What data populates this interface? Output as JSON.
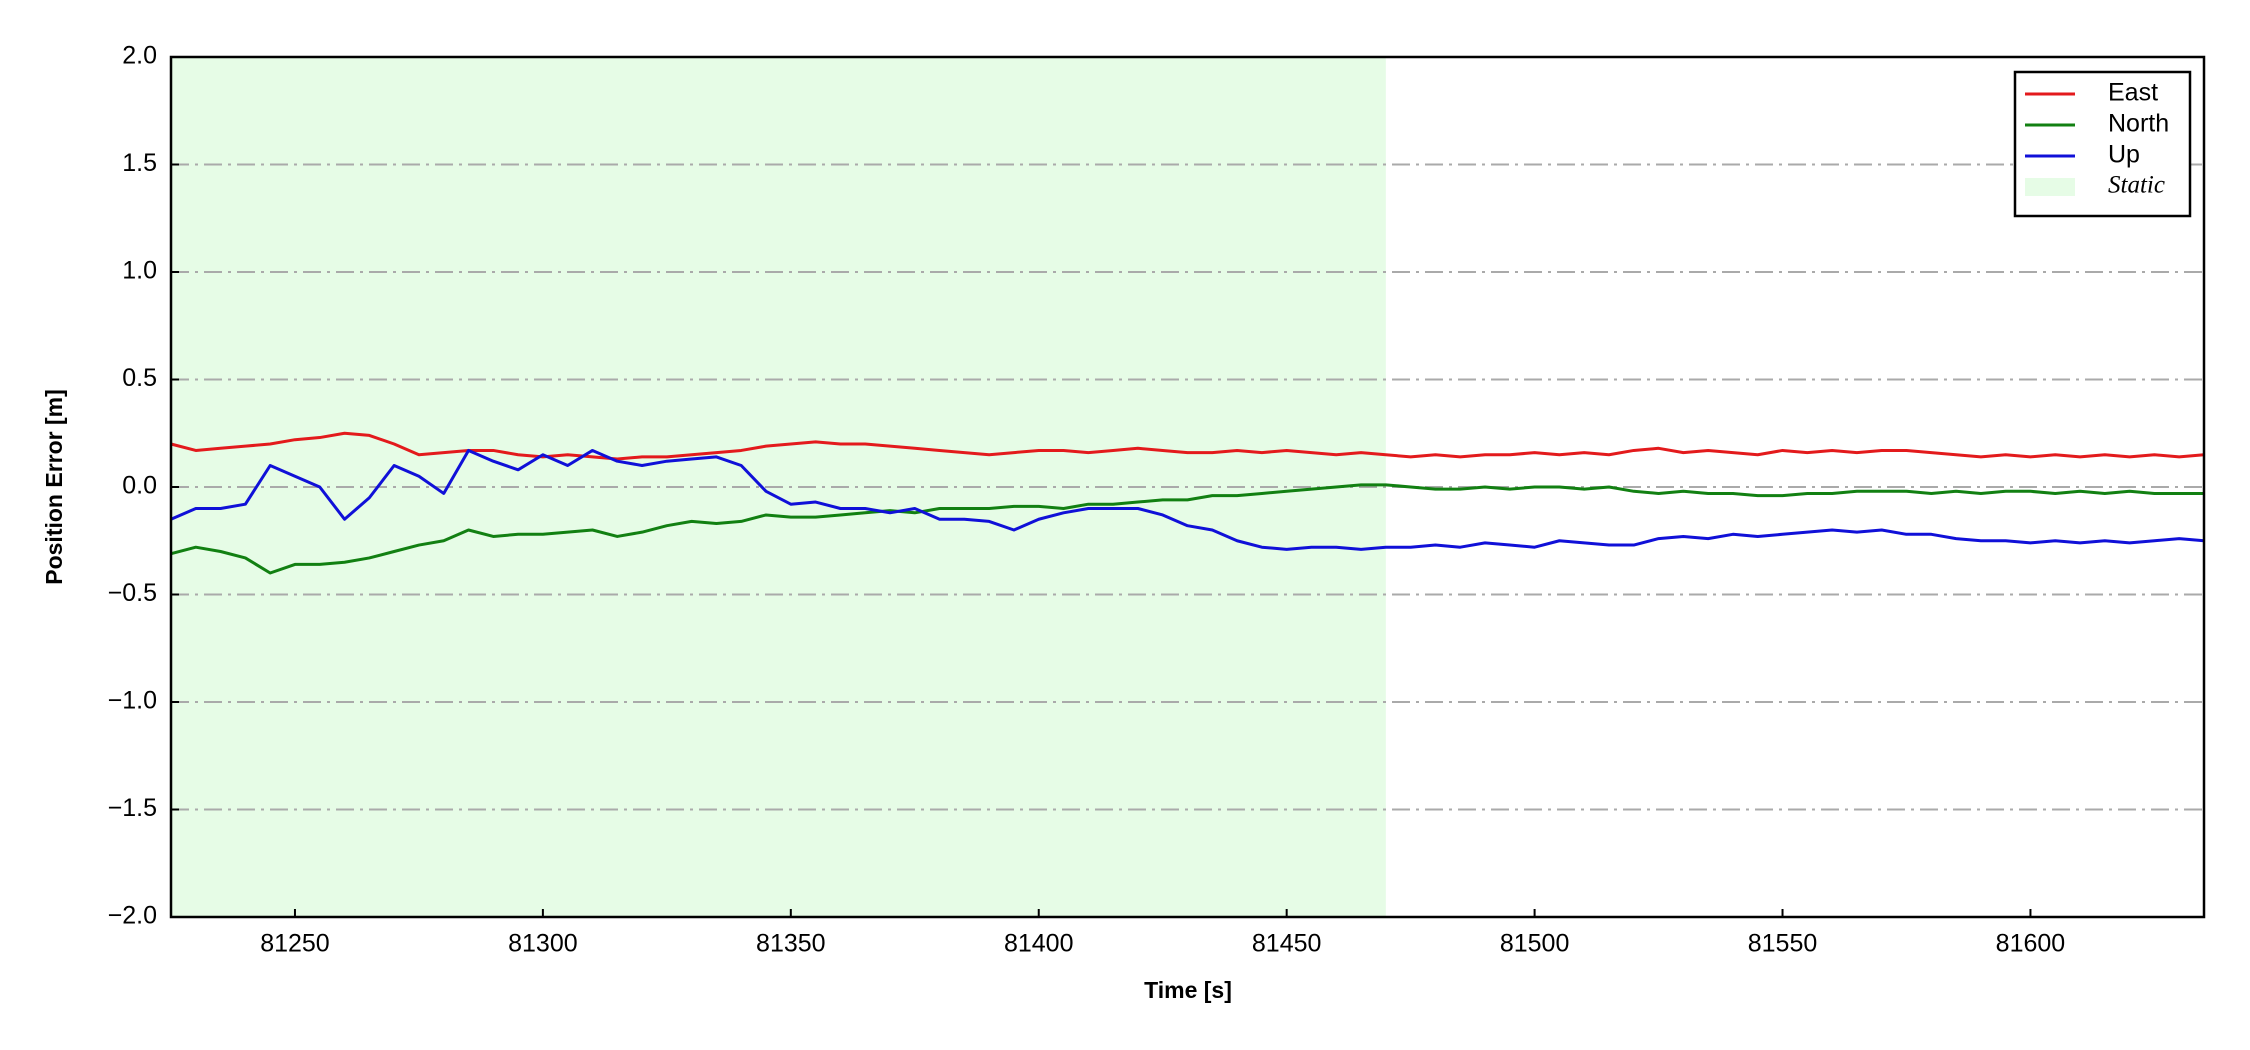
{
  "chart_data": {
    "type": "line",
    "xlabel": "Time [s]",
    "ylabel": "Position Error [m]",
    "x": [
      81225,
      81230,
      81235,
      81240,
      81245,
      81250,
      81255,
      81260,
      81265,
      81270,
      81275,
      81280,
      81285,
      81290,
      81295,
      81300,
      81305,
      81310,
      81315,
      81320,
      81325,
      81330,
      81335,
      81340,
      81345,
      81350,
      81355,
      81360,
      81365,
      81370,
      81375,
      81380,
      81385,
      81390,
      81395,
      81400,
      81405,
      81410,
      81415,
      81420,
      81425,
      81430,
      81435,
      81440,
      81445,
      81450,
      81455,
      81460,
      81465,
      81470,
      81475,
      81480,
      81485,
      81490,
      81495,
      81500,
      81505,
      81510,
      81515,
      81520,
      81525,
      81530,
      81535,
      81540,
      81545,
      81550,
      81555,
      81560,
      81565,
      81570,
      81575,
      81580,
      81585,
      81590,
      81595,
      81600,
      81605,
      81610,
      81615,
      81620,
      81625,
      81630,
      81635
    ],
    "series": [
      {
        "name": "East",
        "color": "#e31a1c",
        "values": [
          0.2,
          0.17,
          0.18,
          0.19,
          0.2,
          0.22,
          0.23,
          0.25,
          0.24,
          0.2,
          0.15,
          0.16,
          0.17,
          0.17,
          0.15,
          0.14,
          0.15,
          0.14,
          0.13,
          0.14,
          0.14,
          0.15,
          0.16,
          0.17,
          0.19,
          0.2,
          0.21,
          0.2,
          0.2,
          0.19,
          0.18,
          0.17,
          0.16,
          0.15,
          0.16,
          0.17,
          0.17,
          0.16,
          0.17,
          0.18,
          0.17,
          0.16,
          0.16,
          0.17,
          0.16,
          0.17,
          0.16,
          0.15,
          0.16,
          0.15,
          0.14,
          0.15,
          0.14,
          0.15,
          0.15,
          0.16,
          0.15,
          0.16,
          0.15,
          0.17,
          0.18,
          0.16,
          0.17,
          0.16,
          0.15,
          0.17,
          0.16,
          0.17,
          0.16,
          0.17,
          0.17,
          0.16,
          0.15,
          0.14,
          0.15,
          0.14,
          0.15,
          0.14,
          0.15,
          0.14,
          0.15,
          0.14,
          0.15
        ]
      },
      {
        "name": "North",
        "color": "#128012",
        "values": [
          -0.31,
          -0.28,
          -0.3,
          -0.33,
          -0.4,
          -0.36,
          -0.36,
          -0.35,
          -0.33,
          -0.3,
          -0.27,
          -0.25,
          -0.2,
          -0.23,
          -0.22,
          -0.22,
          -0.21,
          -0.2,
          -0.23,
          -0.21,
          -0.18,
          -0.16,
          -0.17,
          -0.16,
          -0.13,
          -0.14,
          -0.14,
          -0.13,
          -0.12,
          -0.11,
          -0.12,
          -0.1,
          -0.1,
          -0.1,
          -0.09,
          -0.09,
          -0.1,
          -0.08,
          -0.08,
          -0.07,
          -0.06,
          -0.06,
          -0.04,
          -0.04,
          -0.03,
          -0.02,
          -0.01,
          0,
          0.01,
          0.01,
          0,
          -0.01,
          -0.01,
          0,
          -0.01,
          0,
          0,
          -0.01,
          0,
          -0.02,
          -0.03,
          -0.02,
          -0.03,
          -0.03,
          -0.04,
          -0.04,
          -0.03,
          -0.03,
          -0.02,
          -0.02,
          -0.02,
          -0.03,
          -0.02,
          -0.03,
          -0.02,
          -0.02,
          -0.03,
          -0.02,
          -0.03,
          -0.02,
          -0.03,
          -0.03,
          -0.03
        ]
      },
      {
        "name": "Up",
        "color": "#1010d8",
        "values": [
          -0.15,
          -0.1,
          -0.1,
          -0.08,
          0.1,
          0.05,
          0,
          -0.15,
          -0.05,
          0.1,
          0.05,
          -0.03,
          0.17,
          0.12,
          0.08,
          0.15,
          0.1,
          0.17,
          0.12,
          0.1,
          0.12,
          0.13,
          0.14,
          0.1,
          -0.02,
          -0.08,
          -0.07,
          -0.1,
          -0.1,
          -0.12,
          -0.1,
          -0.15,
          -0.15,
          -0.16,
          -0.2,
          -0.15,
          -0.12,
          -0.1,
          -0.1,
          -0.1,
          -0.13,
          -0.18,
          -0.2,
          -0.25,
          -0.28,
          -0.29,
          -0.28,
          -0.28,
          -0.29,
          -0.28,
          -0.28,
          -0.27,
          -0.28,
          -0.26,
          -0.27,
          -0.28,
          -0.25,
          -0.26,
          -0.27,
          -0.27,
          -0.24,
          -0.23,
          -0.24,
          -0.22,
          -0.23,
          -0.22,
          -0.21,
          -0.2,
          -0.21,
          -0.2,
          -0.22,
          -0.22,
          -0.24,
          -0.25,
          -0.25,
          -0.26,
          -0.25,
          -0.26,
          -0.25,
          -0.26,
          -0.25,
          -0.24,
          -0.25
        ]
      }
    ],
    "shaded_regions": [
      {
        "name": "Static",
        "color": "#e6fce6",
        "x": [
          81225,
          81470
        ]
      }
    ],
    "xlim": [
      81225,
      81635
    ],
    "xticks": [
      81250,
      81300,
      81350,
      81400,
      81450,
      81500,
      81550,
      81600
    ],
    "ylim": [
      -2,
      2
    ],
    "yticks": [
      {
        "value": -2,
        "label": "−2.0"
      },
      {
        "value": -1.5,
        "label": "−1.5"
      },
      {
        "value": -1,
        "label": "−1.0"
      },
      {
        "value": -0.5,
        "label": "−0.5"
      },
      {
        "value": 0,
        "label": "0.0"
      },
      0.5,
      {
        "value": 1,
        "label": "1.0"
      },
      1.5,
      {
        "value": 2,
        "label": "2.0"
      }
    ],
    "grid": true,
    "legend": "upper right"
  }
}
